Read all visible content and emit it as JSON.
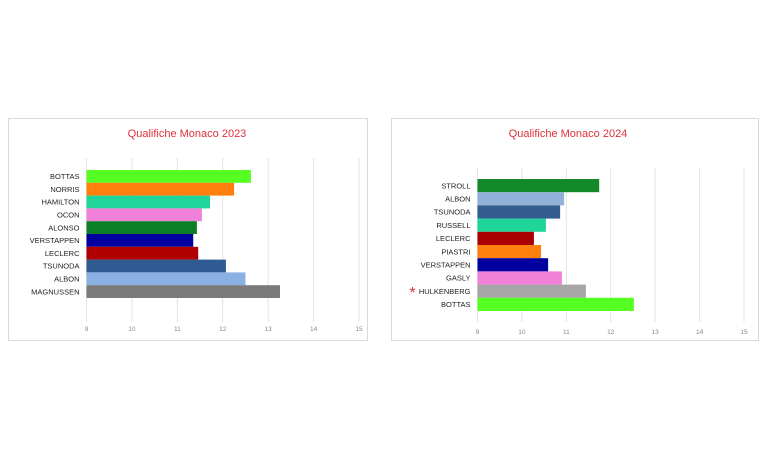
{
  "chart_data": [
    {
      "type": "bar",
      "orientation": "horizontal",
      "title": "Qualifiche Monaco 2023",
      "categories": [
        "BOTTAS",
        "NORRIS",
        "HAMILTON",
        "OCON",
        "ALONSO",
        "VERSTAPPEN",
        "LECLERC",
        "TSUNODA",
        "ALBON",
        "MAGNUSSEN"
      ],
      "values": [
        12.62,
        12.25,
        11.72,
        11.54,
        11.43,
        11.35,
        11.46,
        12.07,
        12.5,
        13.26
      ],
      "colors": [
        "#55ff22",
        "#ff7f0e",
        "#1fd59a",
        "#f080d8",
        "#0b7f26",
        "#0000a0",
        "#b00000",
        "#2f5a92",
        "#8bb0e4",
        "#7a7a7a"
      ],
      "xlim": [
        9,
        15
      ],
      "xticks": [
        "9",
        "10",
        "11",
        "12",
        "13",
        "14",
        "15"
      ],
      "grid": true,
      "xlabel": "",
      "ylabel": ""
    },
    {
      "type": "bar",
      "orientation": "horizontal",
      "title": "Qualifiche Monaco 2024",
      "categories": [
        "STROLL",
        "ALBON",
        "TSUNODA",
        "RUSSELL",
        "LECLERC",
        "PIASTRI",
        "VERSTAPPEN",
        "GASLY",
        "HULKENBERG",
        "BOTTAS"
      ],
      "values": [
        11.74,
        10.95,
        10.86,
        10.54,
        10.27,
        10.43,
        10.59,
        10.9,
        11.44,
        12.52
      ],
      "colors": [
        "#138a2a",
        "#93b0d8",
        "#335d8f",
        "#1fd59a",
        "#aa0000",
        "#ff7f0e",
        "#0000a0",
        "#f080d8",
        "#a6a6a6",
        "#55ff22"
      ],
      "xlim": [
        9,
        15
      ],
      "xticks": [
        "9",
        "10",
        "11",
        "12",
        "13",
        "14",
        "15"
      ],
      "grid": true,
      "annotation": "*",
      "annotated_category": "HULKENBERG",
      "xlabel": "",
      "ylabel": ""
    }
  ]
}
